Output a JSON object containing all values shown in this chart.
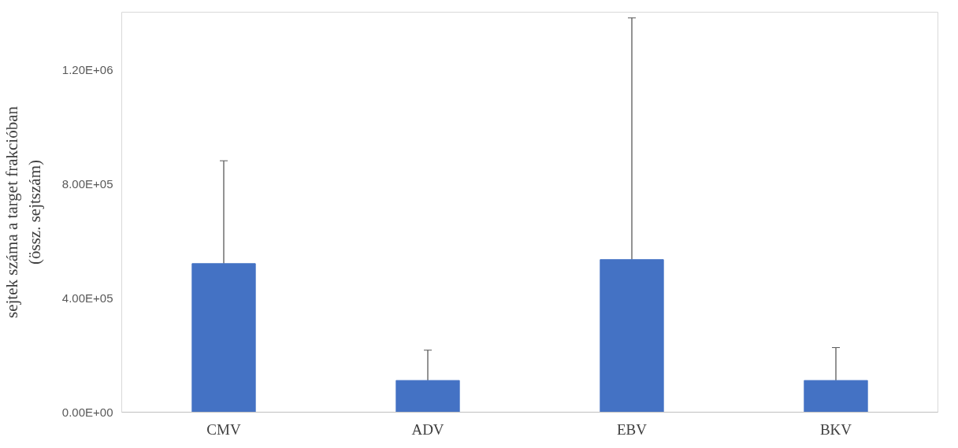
{
  "chart_data": {
    "type": "bar",
    "ylabel": "sejtek száma a target frakcióban\n(össz. sejtszám)",
    "categories": [
      "CMV",
      "ADV",
      "EBV",
      "BKV"
    ],
    "values": [
      520000,
      111000,
      534000,
      111000
    ],
    "errors": [
      [
        520000,
        880000
      ],
      [
        111000,
        217000
      ],
      [
        534000,
        1380000
      ],
      [
        111000,
        226000
      ]
    ],
    "color": "#4472c4",
    "ylim": [
      0,
      1400000
    ],
    "yticks": [
      {
        "value": 0,
        "label": "0.00E+00"
      },
      {
        "value": 400000,
        "label": "4.00E+05"
      },
      {
        "value": 800000,
        "label": "8.00E+05"
      },
      {
        "value": 1200000,
        "label": "1.20E+06"
      }
    ],
    "grid": false
  }
}
